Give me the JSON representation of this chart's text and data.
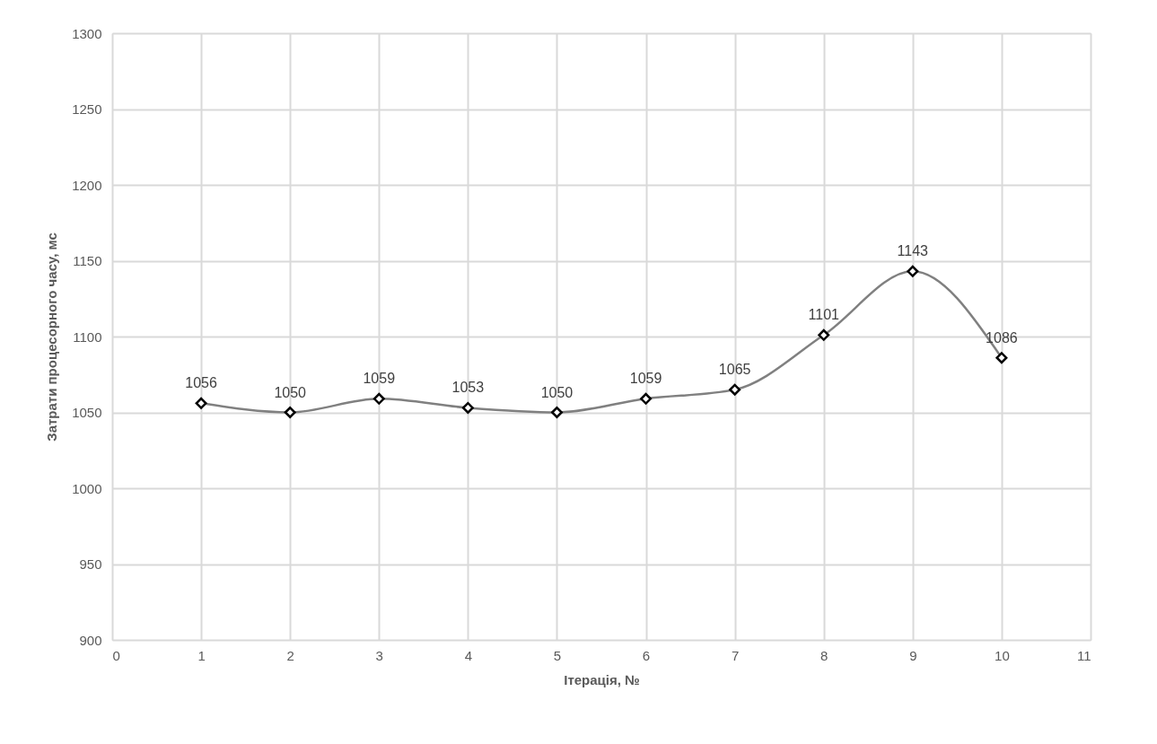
{
  "chart_data": {
    "type": "line",
    "xlabel": "Ітерація, №",
    "ylabel": "Затрати процесорного часу, мс",
    "x": [
      1,
      2,
      3,
      4,
      5,
      6,
      7,
      8,
      9,
      10
    ],
    "series": [
      {
        "color": "#808080",
        "values": [
          1056,
          1050,
          1059,
          1053,
          1050,
          1059,
          1065,
          1101,
          1143,
          1086
        ]
      }
    ],
    "xlim": [
      0,
      11
    ],
    "xticks": [
      0,
      1,
      2,
      3,
      4,
      5,
      6,
      7,
      8,
      9,
      10,
      11
    ],
    "ylim": [
      900,
      1300
    ],
    "yticks": [
      900,
      950,
      1000,
      1050,
      1100,
      1150,
      1200,
      1250,
      1300
    ],
    "grid": true,
    "marker": "diamond",
    "line_style": "solid",
    "data_labels": true
  }
}
